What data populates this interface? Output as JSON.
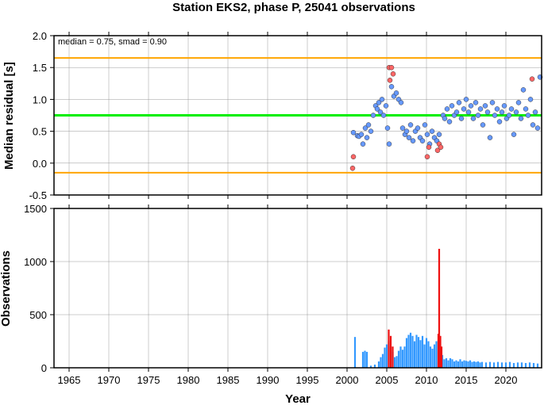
{
  "chart_data": [
    {
      "type": "scatter",
      "title": "Station EKS2, phase P, 25041 observations",
      "ylabel": "Median residual [s]",
      "annotation": "median = 0.75, smad = 0.90",
      "xlim": [
        1963.1,
        2024.5
      ],
      "ylim": [
        -0.5,
        2.0
      ],
      "yticks": [
        -0.5,
        {
          "value": 0,
          "label": "0.0"
        },
        0.5,
        {
          "value": 1,
          "label": "1.0"
        },
        1.5,
        {
          "value": 2,
          "label": "2.0"
        }
      ],
      "grid": true,
      "reference_lines": [
        {
          "value": 0.75,
          "color": "#00ee00"
        },
        {
          "value": 1.65,
          "color": "#ffa500"
        },
        {
          "value": -0.15,
          "color": "#ffa500"
        }
      ],
      "series": [
        {
          "color": "#6699ff",
          "x": [
            2000.8,
            2001.3,
            2001.5,
            2001.8,
            2002.0,
            2002.3,
            2002.5,
            2002.7,
            2003.0,
            2003.3,
            2003.6,
            2003.8,
            2004.0,
            2004.2,
            2004.4,
            2004.6,
            2004.9,
            2005.1,
            2005.3,
            2005.6,
            2005.9,
            2006.2,
            2006.5,
            2006.8,
            2007.0,
            2007.3,
            2007.5,
            2007.8,
            2008.0,
            2008.3,
            2008.6,
            2008.9,
            2009.2,
            2009.5,
            2009.8,
            2010.1,
            2010.4,
            2010.7,
            2011.0,
            2011.3,
            2011.6,
            2012.1,
            2012.3,
            2012.6,
            2012.9,
            2013.2,
            2013.5,
            2013.8,
            2014.1,
            2014.4,
            2014.7,
            2015.0,
            2015.3,
            2015.6,
            2015.9,
            2016.2,
            2016.5,
            2016.8,
            2017.1,
            2017.4,
            2017.7,
            2018.0,
            2018.3,
            2018.6,
            2018.9,
            2019.2,
            2019.5,
            2019.8,
            2020.1,
            2020.4,
            2020.7,
            2021.0,
            2021.3,
            2021.6,
            2021.9,
            2022.2,
            2022.5,
            2022.8,
            2023.1,
            2023.4,
            2023.7,
            2024.0,
            2024.3
          ],
          "values": [
            0.48,
            0.43,
            0.42,
            0.45,
            0.3,
            0.55,
            0.4,
            0.6,
            0.5,
            0.75,
            0.9,
            0.85,
            0.95,
            0.8,
            1.0,
            0.75,
            0.9,
            0.55,
            0.3,
            1.2,
            1.05,
            1.1,
            1.0,
            0.95,
            0.55,
            0.45,
            0.5,
            0.4,
            0.6,
            0.35,
            0.5,
            0.55,
            0.4,
            0.35,
            0.6,
            0.45,
            0.3,
            0.5,
            0.4,
            0.35,
            0.45,
            0.75,
            0.7,
            0.85,
            0.65,
            0.9,
            0.75,
            0.8,
            0.95,
            0.7,
            0.85,
            1.0,
            0.8,
            0.9,
            0.7,
            0.95,
            0.75,
            0.85,
            0.6,
            0.9,
            0.8,
            0.4,
            0.95,
            0.75,
            0.85,
            0.65,
            0.8,
            0.9,
            0.7,
            0.75,
            0.85,
            0.45,
            0.8,
            0.95,
            0.7,
            1.15,
            0.85,
            0.75,
            1.0,
            0.6,
            0.8,
            0.55,
            1.35
          ]
        },
        {
          "color": "#ff6666",
          "x": [
            2000.7,
            2000.8,
            2005.3,
            2005.4,
            2005.6,
            2005.8,
            2010.1,
            2010.3,
            2011.4,
            2011.6,
            2011.8,
            2023.3
          ],
          "values": [
            -0.08,
            0.1,
            1.5,
            1.3,
            1.5,
            1.4,
            0.1,
            0.25,
            0.2,
            0.3,
            0.25,
            1.32
          ]
        }
      ]
    },
    {
      "type": "bar",
      "ylabel": "Observations",
      "xlabel": "Year",
      "xlim": [
        1963.1,
        2024.5
      ],
      "ylim": [
        0,
        1500
      ],
      "xticks": [
        1965,
        1970,
        1975,
        1980,
        1985,
        1990,
        1995,
        2000,
        2005,
        2010,
        2015,
        2020
      ],
      "yticks": [
        0,
        500,
        1000,
        1500
      ],
      "grid": true,
      "series": [
        {
          "color": "#3399ff",
          "x": [
            2001.0,
            2002.0,
            2002.25,
            2002.5,
            2003.0,
            2003.5,
            2004.0,
            2004.25,
            2004.5,
            2004.75,
            2005.0,
            2005.25,
            2005.5,
            2005.75,
            2006.0,
            2006.25,
            2006.5,
            2006.75,
            2007.0,
            2007.25,
            2007.5,
            2007.75,
            2008.0,
            2008.25,
            2008.5,
            2008.75,
            2009.0,
            2009.25,
            2009.5,
            2009.75,
            2010.0,
            2010.25,
            2010.5,
            2010.75,
            2011.0,
            2011.25,
            2011.5,
            2012.0,
            2012.25,
            2012.5,
            2012.75,
            2013.0,
            2013.25,
            2013.5,
            2013.75,
            2014.0,
            2014.25,
            2014.5,
            2014.75,
            2015.0,
            2015.25,
            2015.5,
            2015.75,
            2016.0,
            2016.25,
            2016.5,
            2016.75,
            2017.0,
            2017.5,
            2018.0,
            2018.5,
            2019.0,
            2019.5,
            2020.0,
            2020.5,
            2021.0,
            2021.5,
            2022.0,
            2022.5,
            2023.0,
            2023.5,
            2024.0
          ],
          "values": [
            290,
            150,
            160,
            150,
            20,
            30,
            60,
            100,
            130,
            190,
            220,
            250,
            200,
            150,
            100,
            110,
            160,
            200,
            170,
            200,
            280,
            310,
            330,
            300,
            250,
            310,
            290,
            260,
            300,
            220,
            280,
            250,
            200,
            180,
            220,
            250,
            260,
            120,
            80,
            90,
            70,
            90,
            80,
            60,
            70,
            60,
            80,
            60,
            70,
            65,
            60,
            70,
            55,
            60,
            55,
            60,
            50,
            55,
            50,
            55,
            50,
            55,
            50,
            50,
            55,
            45,
            50,
            50,
            45,
            50,
            45,
            40
          ]
        },
        {
          "color": "#ee1111",
          "x": [
            2005.25,
            2005.5,
            2005.75,
            2011.5,
            2011.6,
            2011.75,
            2011.9
          ],
          "values": [
            360,
            300,
            200,
            320,
            1120,
            300,
            200
          ]
        }
      ]
    }
  ]
}
